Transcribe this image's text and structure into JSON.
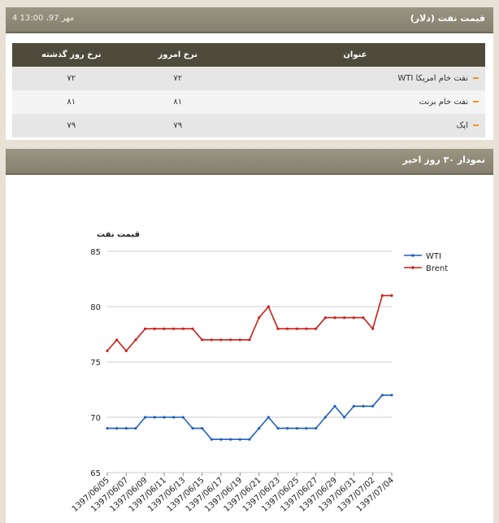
{
  "price_panel": {
    "title": "قیمت نفت (دلار)",
    "date": "4 مهر 97، 13:00",
    "columns": [
      "عنوان",
      "نرخ امروز",
      "نرخ روز گذشته"
    ],
    "rows": [
      {
        "name": "نفت خام امریکا WTI",
        "today": "۷۲",
        "yesterday": "۷۲"
      },
      {
        "name": "نفت خام برنت",
        "today": "۸۱",
        "yesterday": "۸۱"
      },
      {
        "name": "اپک",
        "today": "۷۹",
        "yesterday": "۷۹"
      }
    ],
    "bullet_color": "#f0921c"
  },
  "chart_panel": {
    "title": "نمودار ۳۰ روز اخیر"
  },
  "chart_data": {
    "type": "line",
    "title": "قیمت نفت",
    "x": [
      "1397/06/05",
      "1397/06/06",
      "1397/06/07",
      "1397/06/08",
      "1397/06/09",
      "1397/06/10",
      "1397/06/11",
      "1397/06/12",
      "1397/06/13",
      "1397/06/14",
      "1397/06/15",
      "1397/06/16",
      "1397/06/17",
      "1397/06/18",
      "1397/06/19",
      "1397/06/20",
      "1397/06/21",
      "1397/06/22",
      "1397/06/23",
      "1397/06/24",
      "1397/06/25",
      "1397/06/26",
      "1397/06/27",
      "1397/06/28",
      "1397/06/29",
      "1397/06/30",
      "1397/06/31",
      "1397/07/01",
      "1397/07/02",
      "1397/07/03",
      "1397/07/04"
    ],
    "tick_labels": [
      "1397/06/05",
      "1397/06/07",
      "1397/06/09",
      "1397/06/11",
      "1397/06/13",
      "1397/06/15",
      "1397/06/17",
      "1397/06/19",
      "1397/06/21",
      "1397/06/23",
      "1397/06/25",
      "1397/06/27",
      "1397/06/29",
      "1397/06/31",
      "1397/07/02",
      "1397/07/04"
    ],
    "series": [
      {
        "name": "WTI",
        "color": "#1f5fbf",
        "values": [
          69,
          69,
          69,
          69,
          70,
          70,
          70,
          70,
          70,
          69,
          69,
          68,
          68,
          68,
          68,
          68,
          69,
          70,
          69,
          69,
          69,
          69,
          69,
          70,
          71,
          70,
          71,
          71,
          71,
          72,
          72
        ]
      },
      {
        "name": "Brent",
        "color": "#cc1f1a",
        "values": [
          76,
          77,
          76,
          77,
          78,
          78,
          78,
          78,
          78,
          78,
          77,
          77,
          77,
          77,
          77,
          77,
          79,
          80,
          78,
          78,
          78,
          78,
          78,
          79,
          79,
          79,
          79,
          79,
          78,
          81,
          81
        ]
      }
    ],
    "ylim": [
      65,
      85
    ],
    "yticks": [
      65,
      70,
      75,
      80,
      85
    ],
    "grid": true,
    "legend": "right"
  }
}
